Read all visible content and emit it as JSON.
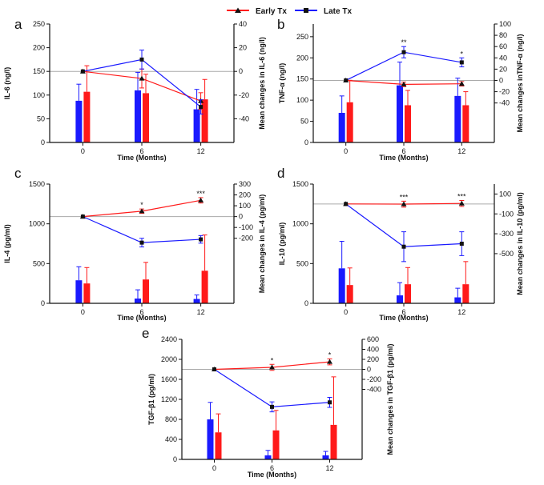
{
  "legend": {
    "early_label": "Early Tx",
    "late_label": "Late Tx",
    "colors": {
      "early": "#ff1a1a",
      "late": "#1a1aff",
      "axis": "#111111",
      "ref": "#aaaaaa"
    }
  },
  "chart_data": [
    {
      "panel": "a",
      "type": "bar+line",
      "xlabel": "Time (Months)",
      "ylabel": "IL-6 (ng/l)",
      "y2label": "Mean changes in IL-6 (ng/l)",
      "categories": [
        "0",
        "6",
        "12"
      ],
      "ylim": [
        0,
        250
      ],
      "yticks": [
        0,
        50,
        100,
        150,
        200,
        250
      ],
      "y2lim": [
        -60,
        40
      ],
      "y2ticks": [
        -40,
        -20,
        0,
        20,
        40
      ],
      "bars": {
        "late": {
          "values": [
            88,
            110,
            70
          ],
          "errors": [
            35,
            38,
            42
          ]
        },
        "early": {
          "values": [
            107,
            104,
            91
          ],
          "errors": [
            55,
            40,
            42
          ]
        }
      },
      "lines": {
        "late": {
          "values": [
            0,
            10,
            -30
          ],
          "errors": [
            0,
            8,
            6
          ]
        },
        "early": {
          "values": [
            0,
            -6,
            -25
          ],
          "errors": [
            0,
            8,
            7
          ]
        }
      },
      "annotations": [
        "",
        "",
        ""
      ]
    },
    {
      "panel": "b",
      "type": "bar+line",
      "xlabel": "Time (Months)",
      "ylabel": "TNF-α (ng/l)",
      "y2label": "Mean changes inTNF-α (ng/l)",
      "categories": [
        "0",
        "6",
        "12"
      ],
      "ylim": [
        0,
        280
      ],
      "yticks": [
        0,
        50,
        100,
        150,
        200,
        250
      ],
      "y2lim": [
        -110,
        100
      ],
      "y2ticks": [
        -40,
        -20,
        0,
        20,
        40,
        60,
        80,
        100
      ],
      "bars": {
        "late": {
          "values": [
            70,
            135,
            110
          ],
          "errors": [
            40,
            55,
            42
          ]
        },
        "early": {
          "values": [
            95,
            88,
            88
          ],
          "errors": [
            52,
            35,
            32
          ]
        }
      },
      "lines": {
        "late": {
          "values": [
            0,
            50,
            32
          ],
          "errors": [
            0,
            10,
            8
          ]
        },
        "early": {
          "values": [
            0,
            -7,
            -6
          ],
          "errors": [
            0,
            4,
            4
          ]
        }
      },
      "annotations": [
        "",
        "**",
        "*"
      ]
    },
    {
      "panel": "c",
      "type": "bar+line",
      "xlabel": "Time (Months)",
      "ylabel": "IL-4 (pg/ml)",
      "y2label": "Mean changes in IL-4 (pg/ml)",
      "categories": [
        "0",
        "6",
        "12"
      ],
      "ylim": [
        0,
        1500
      ],
      "yticks": [
        0,
        500,
        1000,
        1500
      ],
      "y2lim": [
        -800,
        300
      ],
      "y2ticks": [
        -200,
        -100,
        0,
        100,
        200,
        300
      ],
      "bars": {
        "late": {
          "values": [
            290,
            60,
            55
          ],
          "errors": [
            170,
            110,
            50
          ]
        },
        "early": {
          "values": [
            250,
            300,
            410
          ],
          "errors": [
            200,
            215,
            450
          ]
        }
      },
      "lines": {
        "late": {
          "values": [
            0,
            -240,
            -210
          ],
          "errors": [
            0,
            40,
            35
          ]
        },
        "early": {
          "values": [
            0,
            50,
            150
          ],
          "errors": [
            0,
            20,
            25
          ]
        }
      },
      "annotations": [
        "",
        "*",
        "***"
      ]
    },
    {
      "panel": "d",
      "type": "bar+line",
      "xlabel": "Time (Months)",
      "ylabel": "IL-10 (pg/ml)",
      "y2label": "Mean changes in IL-10 (pg/ml)",
      "categories": [
        "0",
        "6",
        "12"
      ],
      "ylim": [
        0,
        1500
      ],
      "yticks": [
        0,
        500,
        1000,
        1500
      ],
      "y2lim": [
        -1000,
        200
      ],
      "y2ticks": [
        -500,
        -300,
        -100,
        100
      ],
      "bars": {
        "late": {
          "values": [
            440,
            100,
            75
          ],
          "errors": [
            340,
            160,
            115
          ]
        },
        "early": {
          "values": [
            230,
            240,
            240
          ],
          "errors": [
            215,
            210,
            285
          ]
        }
      },
      "lines": {
        "late": {
          "values": [
            0,
            -430,
            -400
          ],
          "errors": [
            0,
            150,
            120
          ]
        },
        "early": {
          "values": [
            0,
            -2,
            5
          ],
          "errors": [
            0,
            30,
            30
          ]
        }
      },
      "annotations": [
        "",
        "***",
        "***"
      ]
    },
    {
      "panel": "e",
      "type": "bar+line",
      "xlabel": "Time (Months)",
      "ylabel": "TGF-β1 (pg/ml)",
      "y2label": "Mean changes in TGF-β1 (pg/ml)",
      "categories": [
        "0",
        "6",
        "12"
      ],
      "ylim": [
        0,
        2400
      ],
      "yticks": [
        0,
        400,
        800,
        1200,
        1600,
        2000,
        2400
      ],
      "y2lim": [
        -1800,
        600
      ],
      "y2ticks": [
        -400,
        -200,
        0,
        200,
        400,
        600
      ],
      "bars": {
        "late": {
          "values": [
            800,
            80,
            80
          ],
          "errors": [
            340,
            100,
            80
          ]
        },
        "early": {
          "values": [
            540,
            580,
            690
          ],
          "errors": [
            370,
            400,
            960
          ]
        }
      },
      "lines": {
        "late": {
          "values": [
            0,
            -750,
            -660
          ],
          "errors": [
            0,
            100,
            100
          ]
        },
        "early": {
          "values": [
            0,
            40,
            150
          ],
          "errors": [
            0,
            60,
            60
          ]
        }
      },
      "annotations": [
        "",
        "*",
        "*"
      ]
    }
  ]
}
